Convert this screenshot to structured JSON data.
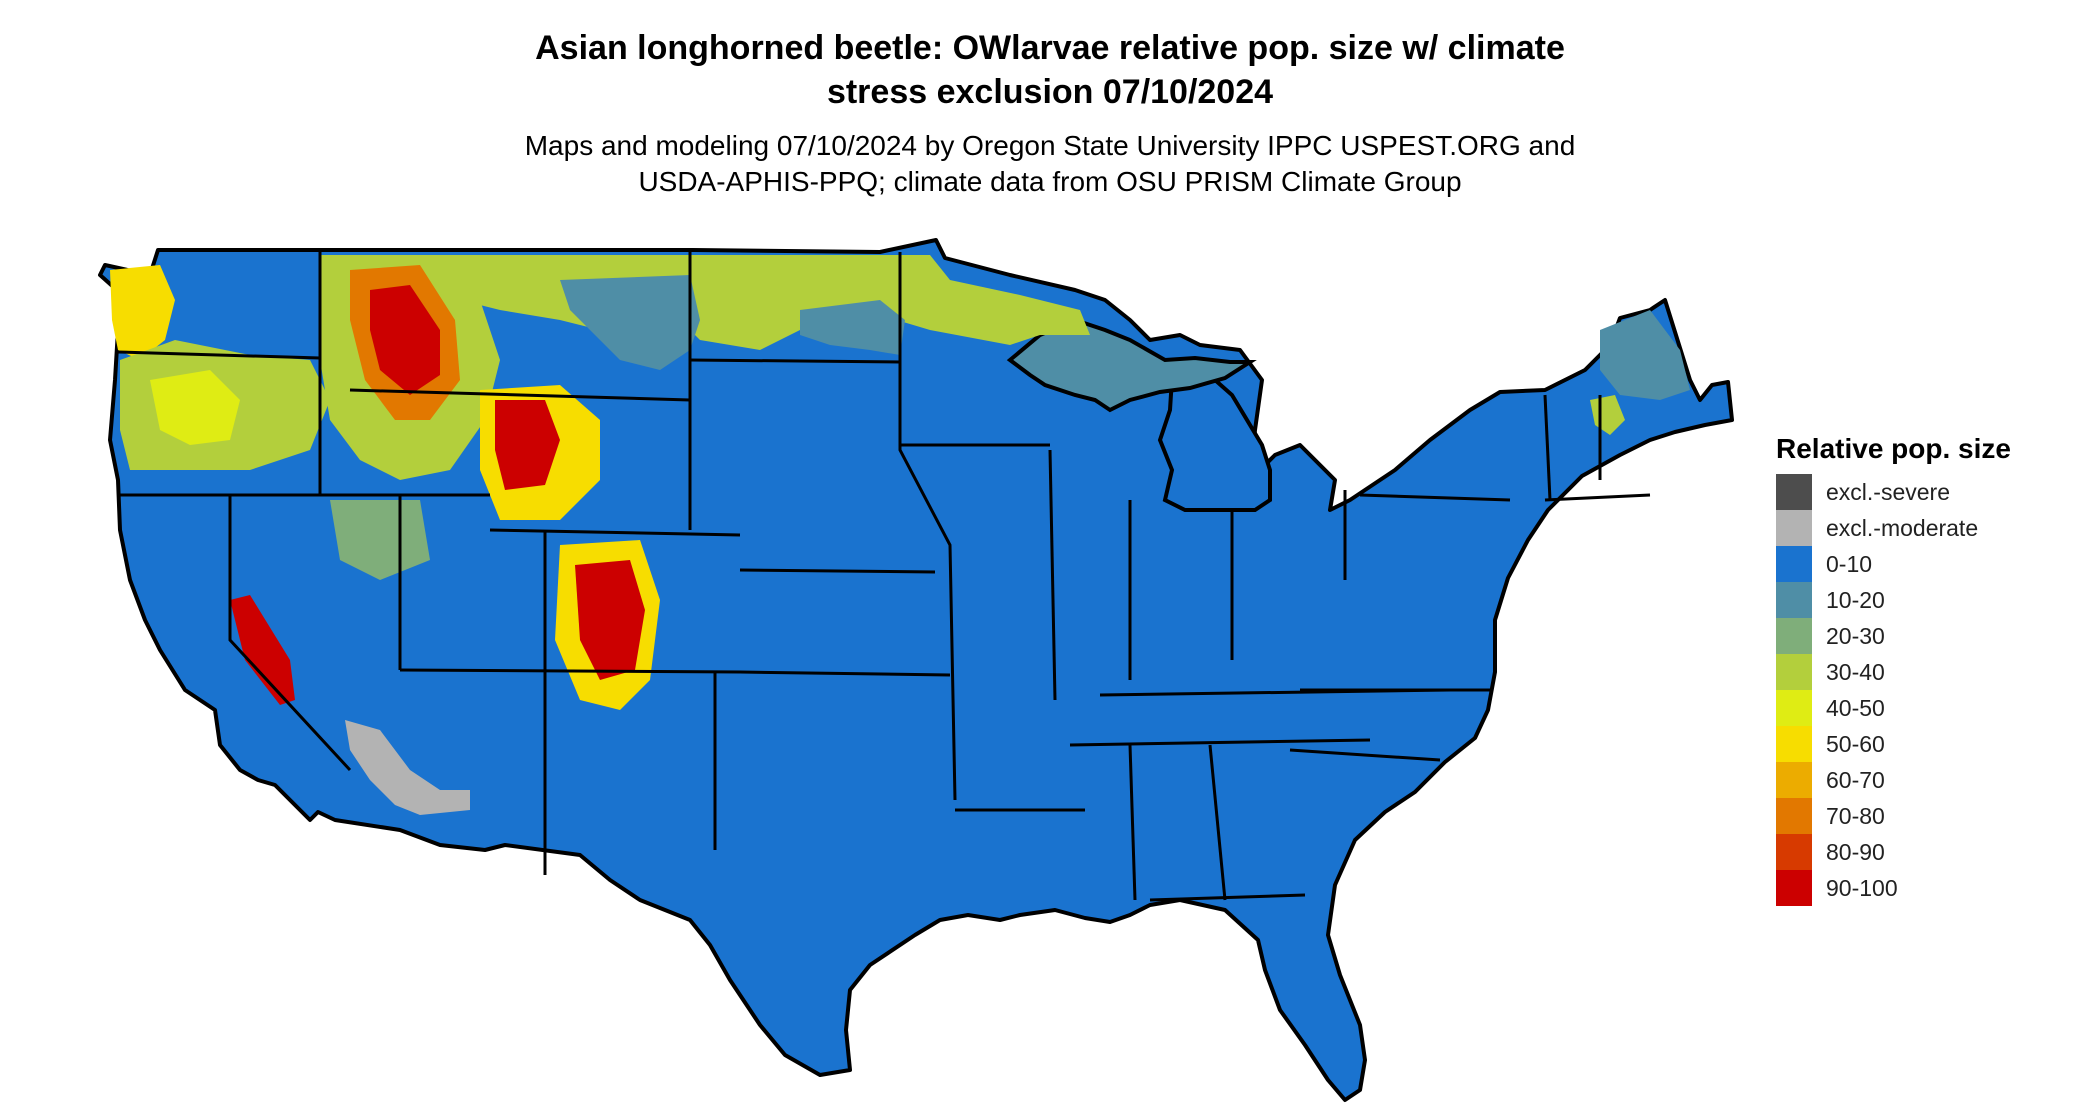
{
  "title": {
    "line1": "Asian longhorned beetle: OWlarvae relative pop. size w/ climate",
    "line2": "stress exclusion 07/10/2024"
  },
  "subtitle": {
    "line1": "Maps and modeling 07/10/2024 by Oregon State University IPPC USPEST.ORG and",
    "line2": "USDA-APHIS-PPQ; climate data from OSU PRISM Climate Group"
  },
  "legend": {
    "title": "Relative pop. size",
    "items": [
      {
        "label": "excl.-severe",
        "color": "#4d4d4d"
      },
      {
        "label": "excl.-moderate",
        "color": "#b3b3b3"
      },
      {
        "label": "0-10",
        "color": "#1a73cf"
      },
      {
        "label": "10-20",
        "color": "#4f8ea6"
      },
      {
        "label": "20-30",
        "color": "#7fae7a"
      },
      {
        "label": "30-40",
        "color": "#b3cf3c"
      },
      {
        "label": "40-50",
        "color": "#dfec14"
      },
      {
        "label": "50-60",
        "color": "#f7dd00"
      },
      {
        "label": "60-70",
        "color": "#ecac00"
      },
      {
        "label": "70-80",
        "color": "#e27800"
      },
      {
        "label": "80-90",
        "color": "#d73a00"
      },
      {
        "label": "90-100",
        "color": "#cc0000"
      }
    ]
  },
  "map": {
    "region": "Contiguous United States",
    "background_class_color": "#1a73cf",
    "state_border_color": "#000000"
  }
}
